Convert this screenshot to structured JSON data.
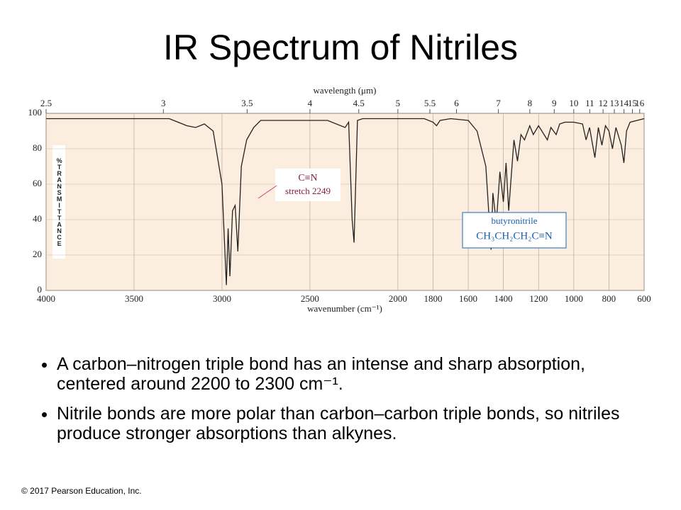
{
  "title": "IR Spectrum of Nitriles",
  "chart_data": {
    "type": "line",
    "x_label": "wavenumber (cm⁻¹)",
    "x2_label": "wavelength (μm)",
    "y_label": "%TRANSMITTANCE",
    "x": [
      4000,
      3500,
      3300,
      3200,
      3150,
      3100,
      3050,
      3000,
      2975,
      2965,
      2955,
      2940,
      2925,
      2910,
      2890,
      2860,
      2820,
      2780,
      2500,
      2400,
      2300,
      2280,
      2260,
      2249,
      2240,
      2230,
      2200,
      2000,
      1900,
      1850,
      1800,
      1780,
      1760,
      1700,
      1600,
      1550,
      1500,
      1470,
      1460,
      1440,
      1420,
      1400,
      1385,
      1370,
      1340,
      1320,
      1300,
      1280,
      1250,
      1230,
      1200,
      1150,
      1130,
      1100,
      1080,
      1050,
      1000,
      950,
      930,
      910,
      880,
      860,
      840,
      820,
      800,
      780,
      760,
      730,
      715,
      700,
      680,
      600
    ],
    "values": [
      97,
      97,
      97,
      93,
      92,
      94,
      90,
      60,
      3,
      35,
      8,
      45,
      48,
      22,
      70,
      85,
      92,
      96,
      96,
      96,
      92,
      95,
      40,
      27,
      60,
      96,
      97,
      97,
      97,
      97,
      95,
      93,
      96,
      97,
      96,
      90,
      70,
      23,
      55,
      38,
      67,
      50,
      72,
      45,
      85,
      73,
      88,
      85,
      93,
      88,
      93,
      85,
      92,
      88,
      94,
      95,
      95,
      94,
      85,
      92,
      75,
      92,
      82,
      93,
      90,
      80,
      92,
      82,
      72,
      90,
      95,
      97
    ],
    "color": "#222222",
    "xlim": [
      4000,
      600
    ],
    "ylim": [
      0,
      100
    ],
    "xticks": [
      4000,
      3500,
      3000,
      2500,
      2000,
      1800,
      1600,
      1400,
      1200,
      1000,
      800,
      600
    ],
    "yticks": [
      0,
      20,
      40,
      60,
      80,
      100
    ],
    "x2ticks": [
      2.5,
      3,
      3.5,
      4,
      4.5,
      5,
      5.5,
      6,
      7,
      8,
      9,
      10,
      11,
      12,
      13,
      14,
      15,
      16
    ],
    "grid": true,
    "annotations": {
      "bond": "C≡N",
      "stretch": "stretch 2249",
      "compound": "butyronitrile",
      "formula": "CH₃CH₂CH₂C≡N"
    }
  },
  "bullets": [
    "A carbon–nitrogen triple bond has an intense and sharp absorption, centered around 2200 to 2300 cm⁻¹.",
    "Nitrile bonds are more polar than carbon–carbon triple bonds, so nitriles produce stronger absorptions than alkynes."
  ],
  "copyright": "© 2017 Pearson Education, Inc."
}
